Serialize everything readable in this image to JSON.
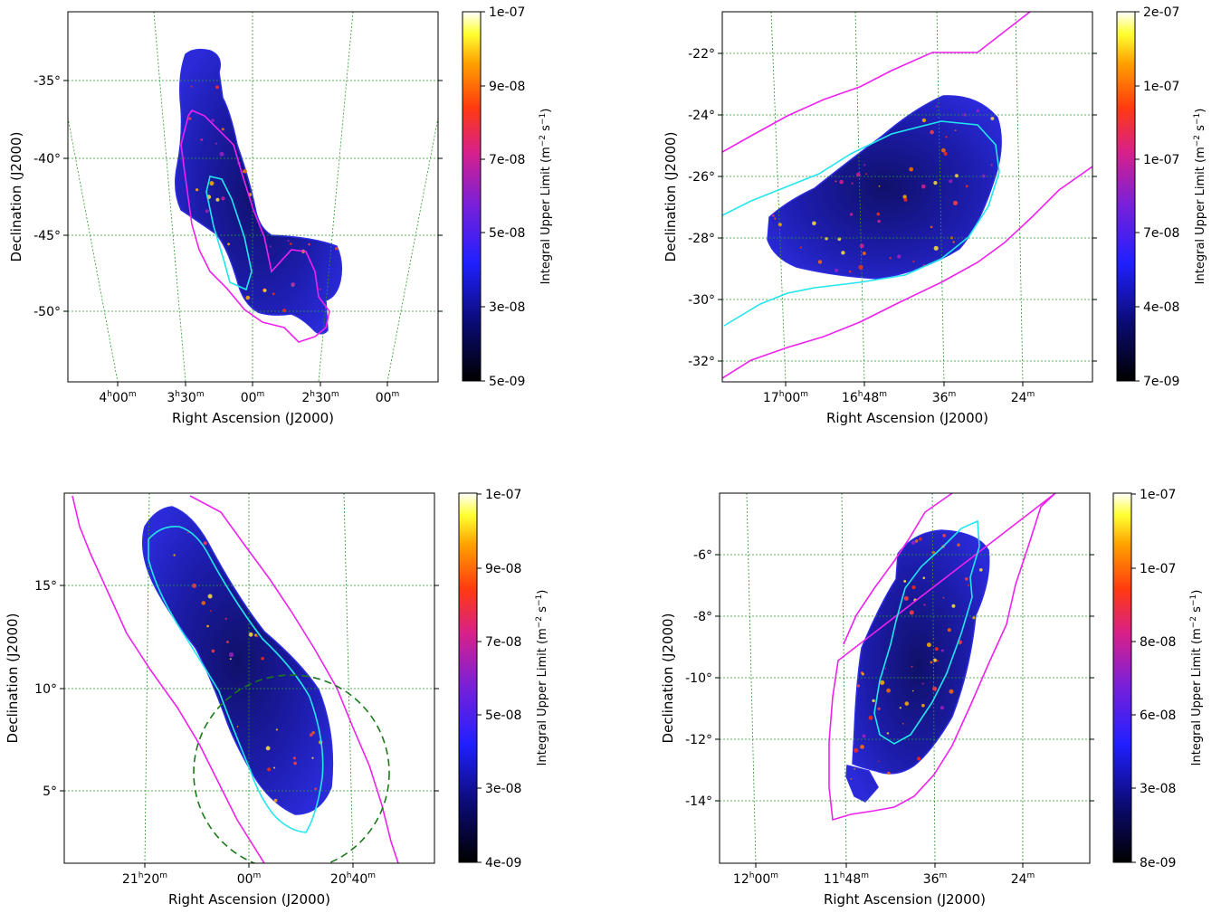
{
  "chart_data": [
    {
      "type": "heatmap",
      "xlabel": "Right Ascension (J2000)",
      "ylabel": "Declination (J2000)",
      "colorbar_label_main": "Integral Upper Limit (m",
      "colorbar_label_exp1": "−2",
      "colorbar_label_mid": " s",
      "colorbar_label_exp2": "−1",
      "colorbar_label_end": ")",
      "colorbar_ticks": [
        "1e-07",
        "9e-08",
        "7e-08",
        "5e-08",
        "3e-08",
        "5e-09"
      ],
      "ra_ticks": [
        {
          "h": "4",
          "hu": "h",
          "m": "00",
          "mu": "m"
        },
        {
          "h": "3",
          "hu": "h",
          "m": "30",
          "mu": "m"
        },
        {
          "h": "",
          "hu": "",
          "m": "00",
          "mu": "m"
        },
        {
          "h": "2",
          "hu": "h",
          "m": "30",
          "mu": "m"
        },
        {
          "h": "",
          "hu": "",
          "m": "00",
          "mu": "m"
        }
      ],
      "dec_ticks": [
        "-35°",
        "-40°",
        "-45°",
        "-50°"
      ],
      "colormap": "gnuplot2",
      "contour_colors": {
        "cyan": "#22e6ee",
        "magenta": "#ee22ee"
      },
      "grid": true
    },
    {
      "type": "heatmap",
      "xlabel": "Right Ascension (J2000)",
      "ylabel": "Declination (J2000)",
      "colorbar_label_main": "Integral Upper Limit (m",
      "colorbar_label_exp1": "−2",
      "colorbar_label_mid": " s",
      "colorbar_label_exp2": "−1",
      "colorbar_label_end": ")",
      "colorbar_ticks": [
        "2e-07",
        "1e-07",
        "1e-07",
        "7e-08",
        "4e-08",
        "7e-09"
      ],
      "ra_ticks": [
        {
          "h": "17",
          "hu": "h",
          "m": "00",
          "mu": "m"
        },
        {
          "h": "16",
          "hu": "h",
          "m": "48",
          "mu": "m"
        },
        {
          "h": "",
          "hu": "",
          "m": "36",
          "mu": "m"
        },
        {
          "h": "",
          "hu": "",
          "m": "24",
          "mu": "m"
        }
      ],
      "dec_ticks": [
        "-22°",
        "-24°",
        "-26°",
        "-28°",
        "-30°",
        "-32°"
      ],
      "colormap": "gnuplot2",
      "contour_colors": {
        "cyan": "#22e6ee",
        "magenta": "#ee22ee"
      },
      "grid": true
    },
    {
      "type": "heatmap",
      "xlabel": "Right Ascension (J2000)",
      "ylabel": "Declination (J2000)",
      "colorbar_label_main": "Integral Upper Limit (m",
      "colorbar_label_exp1": "−2",
      "colorbar_label_mid": " s",
      "colorbar_label_exp2": "−1",
      "colorbar_label_end": ")",
      "colorbar_ticks": [
        "1e-07",
        "9e-08",
        "7e-08",
        "5e-08",
        "3e-08",
        "4e-09"
      ],
      "ra_ticks": [
        {
          "h": "21",
          "hu": "h",
          "m": "20",
          "mu": "m"
        },
        {
          "h": "",
          "hu": "",
          "m": "00",
          "mu": "m"
        },
        {
          "h": "20",
          "hu": "h",
          "m": "40",
          "mu": "m"
        }
      ],
      "dec_ticks": [
        "15°",
        "10°",
        "5°"
      ],
      "colormap": "gnuplot2",
      "contour_colors": {
        "cyan": "#22e6ee",
        "magenta": "#ee22ee",
        "circle": "#1a7a1a"
      },
      "grid": true
    },
    {
      "type": "heatmap",
      "xlabel": "Right Ascension (J2000)",
      "ylabel": "Declination (J2000)",
      "colorbar_label_main": "Integral Upper Limit (m",
      "colorbar_label_exp1": "−2",
      "colorbar_label_mid": " s",
      "colorbar_label_exp2": "−1",
      "colorbar_label_end": ")",
      "colorbar_ticks": [
        "1e-07",
        "1e-07",
        "8e-08",
        "6e-08",
        "3e-08",
        "8e-09"
      ],
      "ra_ticks": [
        {
          "h": "12",
          "hu": "h",
          "m": "00",
          "mu": "m"
        },
        {
          "h": "11",
          "hu": "h",
          "m": "48",
          "mu": "m"
        },
        {
          "h": "",
          "hu": "",
          "m": "36",
          "mu": "m"
        },
        {
          "h": "",
          "hu": "",
          "m": "24",
          "mu": "m"
        }
      ],
      "dec_ticks": [
        "-6°",
        "-8°",
        "-10°",
        "-12°",
        "-14°"
      ],
      "colormap": "gnuplot2",
      "contour_colors": {
        "cyan": "#22e6ee",
        "magenta": "#ee22ee"
      },
      "grid": true
    }
  ]
}
